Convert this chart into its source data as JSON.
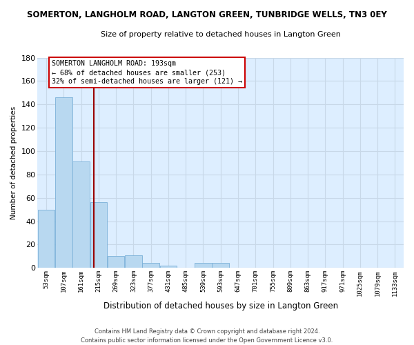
{
  "title": "SOMERTON, LANGHOLM ROAD, LANGTON GREEN, TUNBRIDGE WELLS, TN3 0EY",
  "subtitle": "Size of property relative to detached houses in Langton Green",
  "xlabel": "Distribution of detached houses by size in Langton Green",
  "ylabel": "Number of detached properties",
  "bar_color": "#b8d8f0",
  "bar_edge_color": "#7ab0d8",
  "bg_plot_color": "#ddeeff",
  "categories": [
    "53sqm",
    "107sqm",
    "161sqm",
    "215sqm",
    "269sqm",
    "323sqm",
    "377sqm",
    "431sqm",
    "485sqm",
    "539sqm",
    "593sqm",
    "647sqm",
    "701sqm",
    "755sqm",
    "809sqm",
    "863sqm",
    "917sqm",
    "971sqm",
    "1025sqm",
    "1079sqm",
    "1133sqm"
  ],
  "values": [
    50,
    146,
    91,
    56,
    10,
    11,
    4,
    2,
    0,
    4,
    4,
    0,
    0,
    0,
    0,
    0,
    0,
    0,
    0,
    0,
    0
  ],
  "ylim": [
    0,
    180
  ],
  "yticks": [
    0,
    20,
    40,
    60,
    80,
    100,
    120,
    140,
    160,
    180
  ],
  "property_line_x": 2.72,
  "property_line_color": "#990000",
  "annotation_title": "SOMERTON LANGHOLM ROAD: 193sqm",
  "annotation_line1": "← 68% of detached houses are smaller (253)",
  "annotation_line2": "32% of semi-detached houses are larger (121) →",
  "annotation_box_color": "#ffffff",
  "annotation_box_edge": "#cc0000",
  "footer1": "Contains HM Land Registry data © Crown copyright and database right 2024.",
  "footer2": "Contains public sector information licensed under the Open Government Licence v3.0.",
  "background_color": "#ffffff",
  "grid_color": "#c8d8e8"
}
